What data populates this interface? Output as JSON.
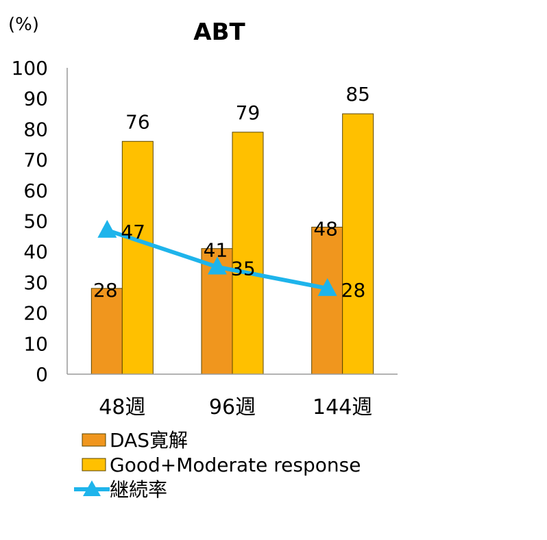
{
  "chart_data": {
    "type": "bar",
    "title": "ABT",
    "ylabel": "(%)",
    "xlabel": "",
    "ylim": [
      0,
      100
    ],
    "yticks": [
      0,
      10,
      20,
      30,
      40,
      50,
      60,
      70,
      80,
      90,
      100
    ],
    "categories": [
      "48週",
      "96週",
      "144週"
    ],
    "grid": false,
    "legend_position": "bottom",
    "series": [
      {
        "name": "DAS寛解",
        "type": "bar",
        "color": "#F0961E",
        "values": [
          28,
          41,
          48
        ],
        "data_labels": [
          "28",
          "41",
          "48"
        ]
      },
      {
        "name": "Good+Moderate response",
        "type": "bar",
        "color": "#FFC000",
        "values": [
          76,
          79,
          85
        ],
        "data_labels": [
          "76",
          "79",
          "85"
        ]
      },
      {
        "name": "継続率",
        "type": "line",
        "marker": "triangle",
        "color": "#1EB4EB",
        "values": [
          47,
          35,
          28
        ],
        "data_labels": [
          "47",
          "35",
          "28"
        ]
      }
    ]
  }
}
